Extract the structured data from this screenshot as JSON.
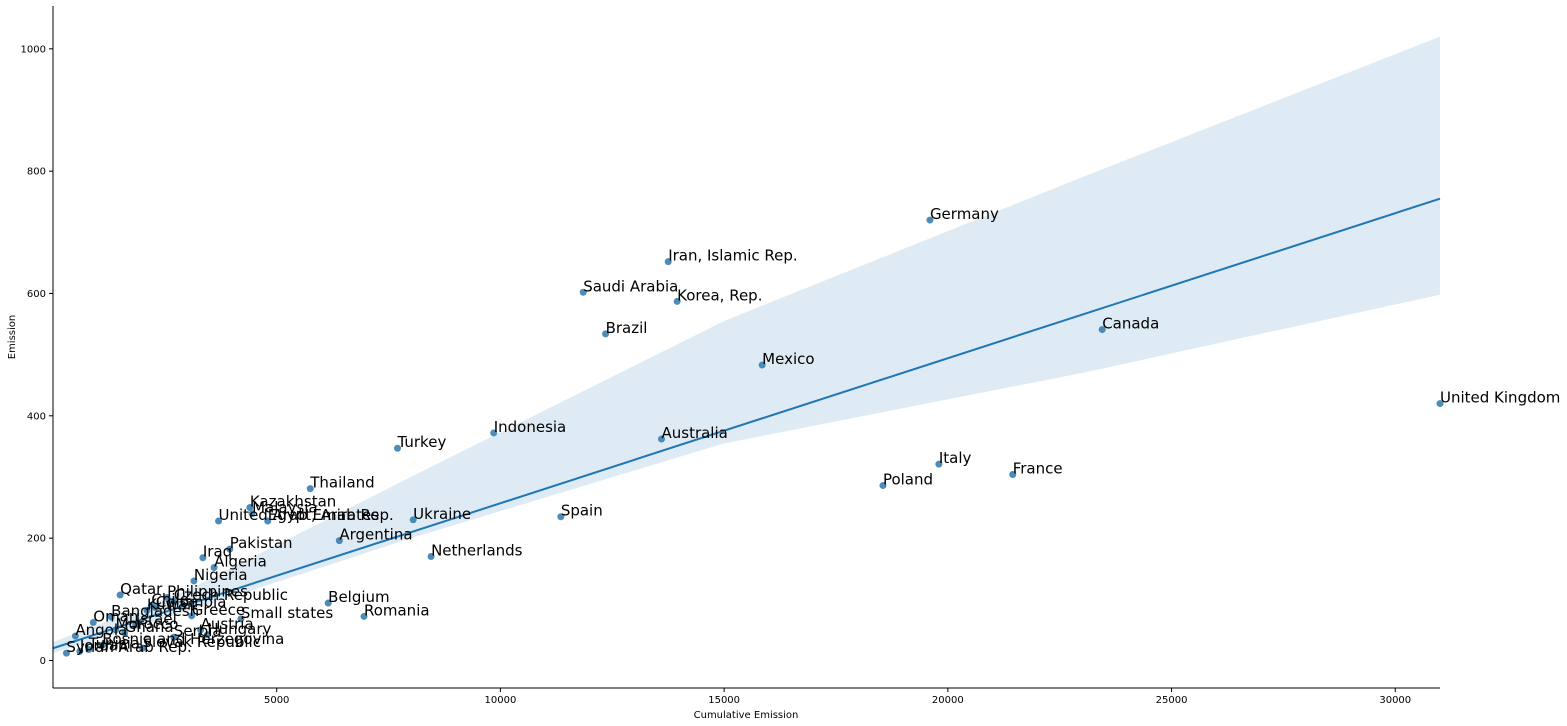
{
  "chart_data": {
    "type": "scatter",
    "xlabel": "Cumulative Emission",
    "ylabel": "Emission",
    "xlim": [
      0,
      31000
    ],
    "ylim": [
      -45,
      1070
    ],
    "xticks": [
      5000,
      10000,
      15000,
      20000,
      25000,
      30000
    ],
    "yticks": [
      0,
      200,
      400,
      600,
      800,
      1000
    ],
    "grid": false,
    "colors": {
      "points": "#3b7fb0",
      "line": "#1f77b4",
      "band": "#1f77b4"
    },
    "regression": {
      "x": [
        0,
        31000
      ],
      "y": [
        20,
        755
      ]
    },
    "confidence_band": {
      "upper": [
        [
          0,
          30
        ],
        [
          3000,
          115
        ],
        [
          8000,
          300
        ],
        [
          15000,
          555
        ],
        [
          23000,
          790
        ],
        [
          31000,
          1020
        ]
      ],
      "lower": [
        [
          0,
          12
        ],
        [
          3000,
          80
        ],
        [
          8000,
          200
        ],
        [
          15000,
          355
        ],
        [
          23000,
          470
        ],
        [
          31000,
          598
        ]
      ]
    },
    "points": [
      {
        "label": "United Kingdom",
        "x": 31000,
        "y": 420
      },
      {
        "label": "Germany",
        "x": 19600,
        "y": 720
      },
      {
        "label": "Iran, Islamic Rep.",
        "x": 13750,
        "y": 652
      },
      {
        "label": "Saudi Arabia",
        "x": 11850,
        "y": 602
      },
      {
        "label": "Korea, Rep.",
        "x": 13950,
        "y": 587
      },
      {
        "label": "Canada",
        "x": 23450,
        "y": 541
      },
      {
        "label": "Brazil",
        "x": 12350,
        "y": 534
      },
      {
        "label": "Mexico",
        "x": 15850,
        "y": 483
      },
      {
        "label": "Indonesia",
        "x": 9850,
        "y": 372
      },
      {
        "label": "Australia",
        "x": 13600,
        "y": 362
      },
      {
        "label": "Turkey",
        "x": 7700,
        "y": 347
      },
      {
        "label": "Italy",
        "x": 19800,
        "y": 321
      },
      {
        "label": "France",
        "x": 21450,
        "y": 304
      },
      {
        "label": "Poland",
        "x": 18550,
        "y": 286
      },
      {
        "label": "Thailand",
        "x": 5750,
        "y": 281
      },
      {
        "label": "Kazakhstan",
        "x": 4400,
        "y": 250
      },
      {
        "label": "Malaysia",
        "x": 4450,
        "y": 240
      },
      {
        "label": "Spain",
        "x": 11350,
        "y": 235
      },
      {
        "label": "United Arab Emirates",
        "x": 3700,
        "y": 228
      },
      {
        "label": "Egypt, Arab Rep.",
        "x": 4800,
        "y": 228
      },
      {
        "label": "Ukraine",
        "x": 8050,
        "y": 230
      },
      {
        "label": "Argentina",
        "x": 6400,
        "y": 196
      },
      {
        "label": "Pakistan",
        "x": 3950,
        "y": 182
      },
      {
        "label": "Netherlands",
        "x": 8450,
        "y": 170
      },
      {
        "label": "Iraq",
        "x": 3350,
        "y": 168
      },
      {
        "label": "Algeria",
        "x": 3600,
        "y": 152
      },
      {
        "label": "Nigeria",
        "x": 3150,
        "y": 130
      },
      {
        "label": "Qatar",
        "x": 1500,
        "y": 107
      },
      {
        "label": "Philippines",
        "x": 2550,
        "y": 103
      },
      {
        "label": "Czech Republic",
        "x": 2700,
        "y": 97
      },
      {
        "label": "Belgium",
        "x": 6150,
        "y": 94
      },
      {
        "label": "Colombia",
        "x": 2300,
        "y": 86
      },
      {
        "label": "Chile",
        "x": 2200,
        "y": 90
      },
      {
        "label": "Kuwait",
        "x": 2100,
        "y": 82
      },
      {
        "label": "Greece",
        "x": 3100,
        "y": 73
      },
      {
        "label": "Romania",
        "x": 6950,
        "y": 72
      },
      {
        "label": "Small states",
        "x": 4200,
        "y": 68
      },
      {
        "label": "Bangladesh",
        "x": 1300,
        "y": 71
      },
      {
        "label": "Oman",
        "x": 900,
        "y": 62
      },
      {
        "label": "Israel",
        "x": 1850,
        "y": 58
      },
      {
        "label": "Morocco",
        "x": 1400,
        "y": 50
      },
      {
        "label": "Austria",
        "x": 3300,
        "y": 50
      },
      {
        "label": "Hungary",
        "x": 3450,
        "y": 42
      },
      {
        "label": "Ghana",
        "x": 1600,
        "y": 45
      },
      {
        "label": "Angola",
        "x": 500,
        "y": 40
      },
      {
        "label": "Serbia",
        "x": 2700,
        "y": 38
      },
      {
        "label": "Bosnia and Herzegovina",
        "x": 1100,
        "y": 25
      },
      {
        "label": "Slovak Republic",
        "x": 2000,
        "y": 20
      },
      {
        "label": "Tunisia",
        "x": 800,
        "y": 18
      },
      {
        "label": "Jordan",
        "x": 600,
        "y": 15
      },
      {
        "label": "Syrian Arab Rep.",
        "x": 300,
        "y": 12
      }
    ]
  }
}
